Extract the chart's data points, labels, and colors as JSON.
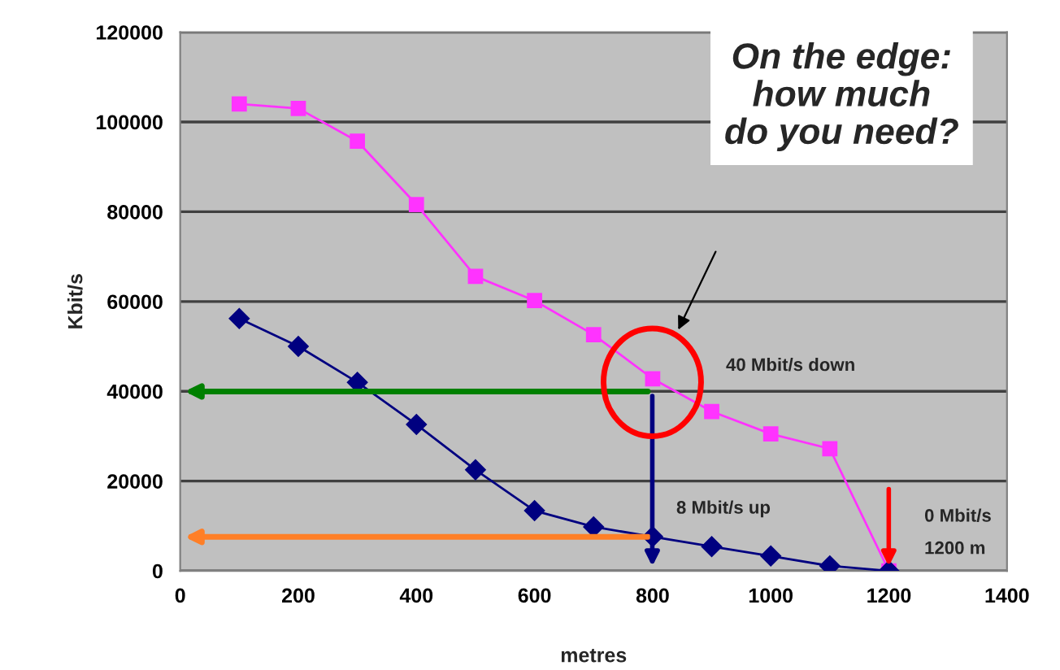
{
  "chart_data": {
    "type": "line",
    "xlabel": "metres",
    "ylabel": "Kbit/s",
    "x": [
      100,
      200,
      300,
      400,
      500,
      600,
      700,
      800,
      900,
      1000,
      1100,
      1200
    ],
    "series": [
      {
        "color": "#ff33ff",
        "marker": "square",
        "values": [
          104000,
          103000,
          95700,
          81600,
          65600,
          60200,
          52600,
          42800,
          35500,
          30500,
          27200,
          0
        ]
      },
      {
        "color": "#000080",
        "marker": "diamond",
        "values": [
          56200,
          50000,
          42000,
          32600,
          22500,
          13400,
          9800,
          7600,
          5400,
          3300,
          1100,
          0
        ]
      }
    ],
    "xlim": [
      0,
      1400
    ],
    "xticks": [
      0,
      200,
      400,
      600,
      800,
      1000,
      1200,
      1400
    ],
    "ylim": [
      0,
      120000
    ],
    "yticks": [
      0,
      20000,
      40000,
      60000,
      80000,
      100000,
      120000
    ],
    "grid": "y",
    "annotations": [
      "On the edge:\nhow much\ndo you need?",
      "40 Mbit/s down",
      "8 Mbit/s up",
      "0 Mbit/s",
      "1200 m"
    ]
  }
}
